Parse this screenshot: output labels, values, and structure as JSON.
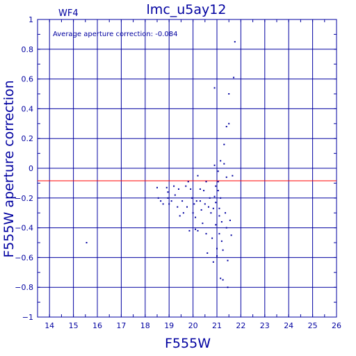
{
  "chart_data": {
    "type": "scatter",
    "title": "lmc_u5ay12",
    "panel_label": "WF4",
    "annotation": "Average aperture correction: -0.084",
    "xlabel": "F555W",
    "ylabel": "F555W aperture correction",
    "xlim": [
      13.5,
      26
    ],
    "ylim": [
      -1,
      1
    ],
    "x_ticks": [
      14,
      15,
      16,
      17,
      18,
      19,
      20,
      21,
      22,
      23,
      24,
      25,
      26
    ],
    "y_ticks": [
      -1,
      -0.8,
      -0.6,
      -0.4,
      -0.2,
      0,
      0.2,
      0.4,
      0.6,
      0.8,
      1
    ],
    "x_tick_labels": [
      "14",
      "15",
      "16",
      "17",
      "18",
      "19",
      "20",
      "21",
      "22",
      "23",
      "24",
      "25",
      "26"
    ],
    "y_tick_labels": [
      "−1",
      "−0.8",
      "−0.6",
      "−0.4",
      "−0.2",
      "0",
      "0.2",
      "0.4",
      "0.6",
      "0.8",
      "1"
    ],
    "grid": true,
    "reference_line": {
      "y": -0.084
    },
    "colors": {
      "axes": "#0000a0",
      "points": "#0000a0",
      "reference_line": "#ff0000",
      "background": "#ffffff"
    },
    "points": [
      [
        15.55,
        -0.5
      ],
      [
        18.5,
        -0.13
      ],
      [
        18.55,
        -0.2
      ],
      [
        18.65,
        -0.22
      ],
      [
        18.75,
        -0.24
      ],
      [
        18.9,
        -0.13
      ],
      [
        18.95,
        -0.16
      ],
      [
        18.95,
        -0.2
      ],
      [
        19.0,
        -0.24
      ],
      [
        19.1,
        -0.22
      ],
      [
        19.2,
        -0.12
      ],
      [
        19.25,
        -0.18
      ],
      [
        19.35,
        -0.26
      ],
      [
        19.4,
        -0.14
      ],
      [
        19.45,
        -0.32
      ],
      [
        19.55,
        -0.22
      ],
      [
        19.6,
        -0.3
      ],
      [
        19.7,
        -0.12
      ],
      [
        19.75,
        -0.26
      ],
      [
        19.8,
        -0.09
      ],
      [
        19.85,
        -0.42
      ],
      [
        19.9,
        -0.14
      ],
      [
        19.95,
        -0.2
      ],
      [
        20.0,
        -0.3
      ],
      [
        20.05,
        -0.24
      ],
      [
        20.1,
        -0.33
      ],
      [
        20.1,
        -0.41
      ],
      [
        20.15,
        -0.22
      ],
      [
        20.2,
        -0.05
      ],
      [
        20.2,
        -0.42
      ],
      [
        20.3,
        -0.14
      ],
      [
        20.3,
        -0.22
      ],
      [
        20.35,
        -0.28
      ],
      [
        20.4,
        -0.37
      ],
      [
        20.45,
        -0.15
      ],
      [
        20.5,
        -0.24
      ],
      [
        20.55,
        -0.09
      ],
      [
        20.55,
        -0.44
      ],
      [
        20.6,
        -0.57
      ],
      [
        20.65,
        -0.26
      ],
      [
        20.7,
        -0.2
      ],
      [
        20.75,
        -0.3
      ],
      [
        20.8,
        -0.47
      ],
      [
        20.85,
        -0.63
      ],
      [
        20.85,
        -0.27
      ],
      [
        20.9,
        0.54
      ],
      [
        20.9,
        0.02
      ],
      [
        20.9,
        -0.19
      ],
      [
        20.95,
        -0.12
      ],
      [
        20.95,
        -0.23
      ],
      [
        20.95,
        -0.38
      ],
      [
        21.0,
        -0.59
      ],
      [
        21.0,
        -0.54
      ],
      [
        21.05,
        -0.02
      ],
      [
        21.05,
        -0.09
      ],
      [
        21.05,
        -0.15
      ],
      [
        21.1,
        -0.27
      ],
      [
        21.1,
        -0.32
      ],
      [
        21.1,
        -0.44
      ],
      [
        21.15,
        -0.74
      ],
      [
        21.15,
        0.05
      ],
      [
        21.15,
        -0.2
      ],
      [
        21.2,
        -0.36
      ],
      [
        21.2,
        -0.49
      ],
      [
        21.25,
        -0.75
      ],
      [
        21.25,
        -0.55
      ],
      [
        21.3,
        0.16
      ],
      [
        21.3,
        0.03
      ],
      [
        21.35,
        -0.3
      ],
      [
        21.4,
        0.28
      ],
      [
        21.4,
        -0.06
      ],
      [
        21.4,
        -0.4
      ],
      [
        21.45,
        -0.62
      ],
      [
        21.5,
        0.3
      ],
      [
        21.5,
        0.5
      ],
      [
        21.55,
        -0.35
      ],
      [
        21.6,
        -0.45
      ],
      [
        21.65,
        -0.05
      ],
      [
        21.7,
        0.61
      ],
      [
        21.75,
        0.85
      ],
      [
        21.45,
        -0.8
      ]
    ]
  }
}
